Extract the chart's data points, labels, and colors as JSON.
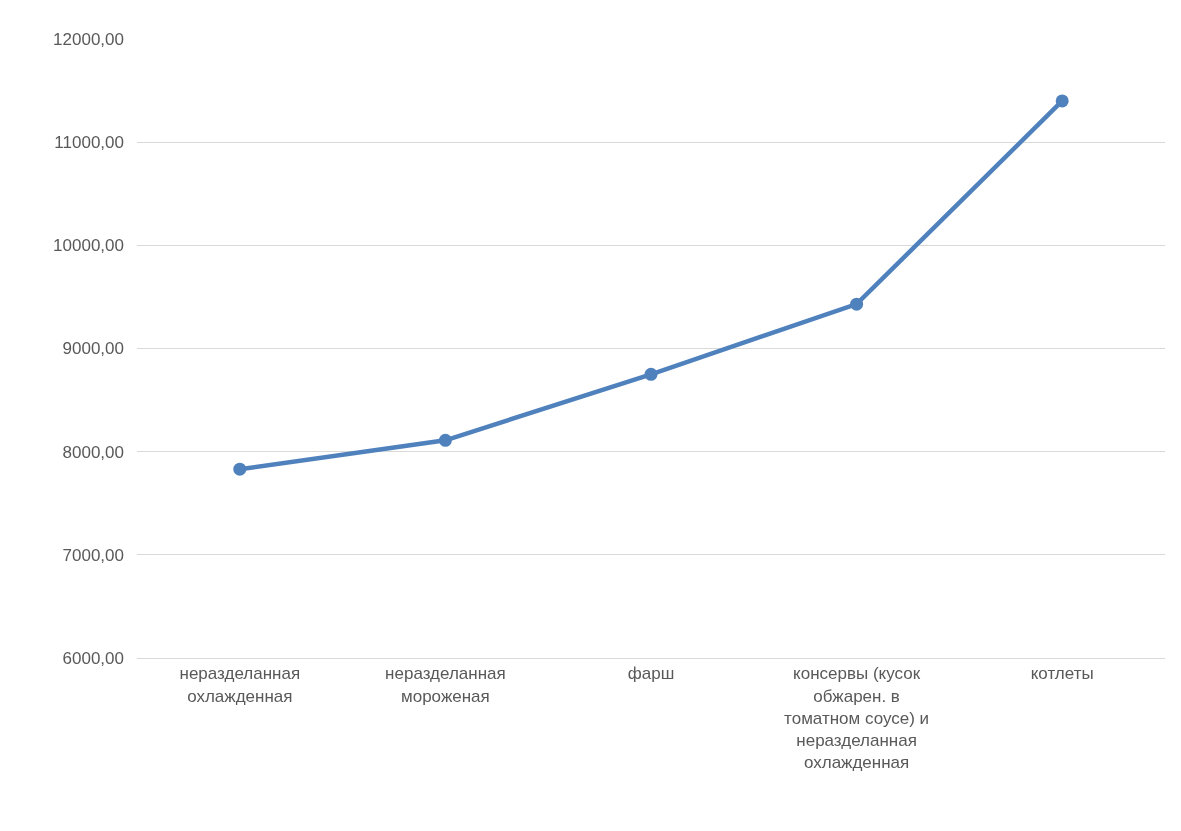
{
  "chart_data": {
    "type": "line",
    "categories": [
      "неразделанная охлажденная",
      "неразделанная мороженая",
      "фарш",
      "консервы (кусок обжарен. в томатном соусе) и неразделанная охлажденная",
      "котлеты"
    ],
    "series": [
      {
        "color": "#4f81bd",
        "values": [
          7830,
          8110,
          8750,
          9430,
          11400
        ]
      }
    ],
    "ylim": [
      6000,
      12000
    ],
    "yticks": [
      {
        "value": 6000,
        "label": "6000,00"
      },
      {
        "value": 7000,
        "label": "7000,00"
      },
      {
        "value": 8000,
        "label": "8000,00"
      },
      {
        "value": 9000,
        "label": "9000,00"
      },
      {
        "value": 10000,
        "label": "10000,00"
      },
      {
        "value": 11000,
        "label": "11000,00"
      },
      {
        "value": 12000,
        "label": "12000,00"
      }
    ],
    "grid": "y",
    "marker": "circle",
    "line_style": "solid"
  }
}
